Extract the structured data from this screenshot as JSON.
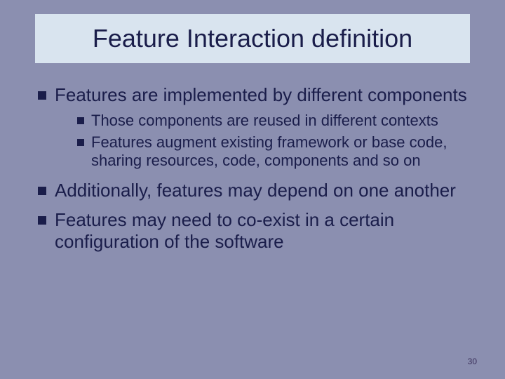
{
  "slide": {
    "title": "Feature Interaction definition",
    "bullets": [
      {
        "text": "Features are implemented by different components",
        "sub": [
          "Those components are reused in different contexts",
          "Features augment existing framework or base code, sharing resources, code, components and so on"
        ]
      },
      {
        "text": "Additionally, features may depend on one another",
        "sub": []
      },
      {
        "text": "Features may need to co-exist in a certain configuration of the software",
        "sub": []
      }
    ],
    "page_number": "30"
  },
  "style": {
    "background_color": "#8b8fb0",
    "title_box_bg": "#d9e4ef",
    "text_color": "#1a1d4a",
    "bullet_color": "#1a1d4a",
    "title_fontsize": 36,
    "level1_fontsize": 26,
    "level2_fontsize": 22,
    "pagenum_fontsize": 12,
    "font_family": "Arial"
  }
}
